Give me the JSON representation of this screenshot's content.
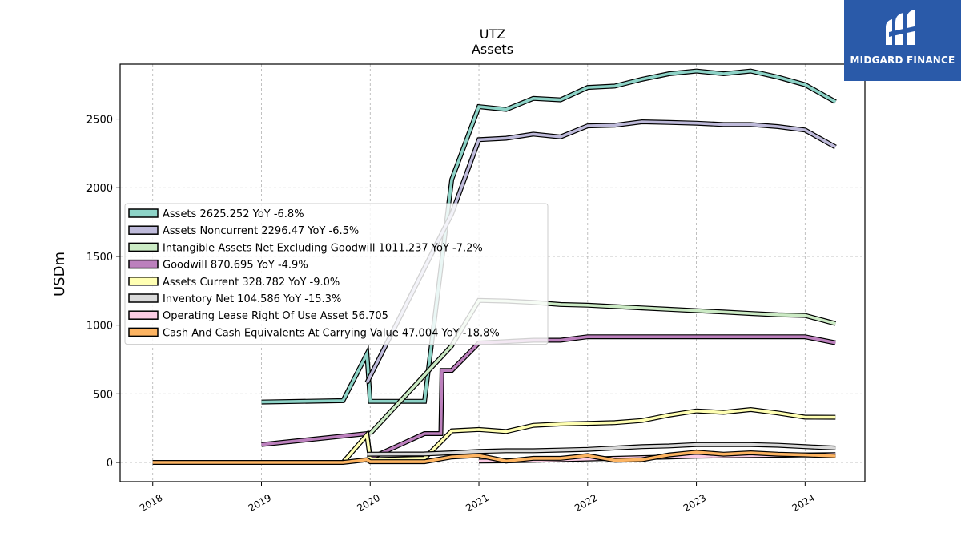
{
  "brand": {
    "name": "MIDGARD FINANCE"
  },
  "chart_data": {
    "type": "line",
    "title": "UTZ",
    "subtitle": "Assets",
    "xlabel": "",
    "ylabel": "USDm",
    "xlim": [
      2017.7,
      2024.55
    ],
    "ylim": [
      -140,
      2900
    ],
    "x_ticks": [
      "2018",
      "2019",
      "2020",
      "2021",
      "2022",
      "2023",
      "2024"
    ],
    "y_ticks": [
      "0",
      "500",
      "1000",
      "1500",
      "2000",
      "2500"
    ],
    "grid": true,
    "legend_position": "center-left",
    "series": [
      {
        "name": "Assets",
        "legend": "Assets  2625.252 YoY -6.8%",
        "color": "#8dd3c7",
        "x": [
          2019.0,
          2019.75,
          2019.97,
          2020.0,
          2020.5,
          2020.75,
          2021.0,
          2021.25,
          2021.5,
          2021.75,
          2022.0,
          2022.25,
          2022.5,
          2022.75,
          2023.0,
          2023.25,
          2023.5,
          2023.75,
          2024.0,
          2024.28
        ],
        "y": [
          440,
          450,
          790,
          445,
          445,
          2060,
          2590,
          2570,
          2650,
          2640,
          2730,
          2740,
          2790,
          2830,
          2850,
          2830,
          2850,
          2805,
          2750,
          2625
        ]
      },
      {
        "name": "Assets Noncurrent",
        "legend": "Assets Noncurrent  2296.47 YoY -6.5%",
        "color": "#bebada",
        "x": [
          2019.97,
          2020.75,
          2021.0,
          2021.25,
          2021.5,
          2021.75,
          2022.0,
          2022.25,
          2022.5,
          2022.75,
          2023.0,
          2023.25,
          2023.5,
          2023.75,
          2024.0,
          2024.28
        ],
        "y": [
          580,
          1810,
          2350,
          2360,
          2390,
          2370,
          2450,
          2455,
          2480,
          2475,
          2470,
          2460,
          2460,
          2445,
          2420,
          2296
        ]
      },
      {
        "name": "Intangible Assets Net Excluding Goodwill",
        "legend": "Intangible Assets Net Excluding Goodwill  1011.237 YoY -7.2%",
        "color": "#ccebc5",
        "x": [
          2020.0,
          2020.75,
          2021.0,
          2021.25,
          2021.5,
          2021.75,
          2022.0,
          2022.25,
          2022.5,
          2022.75,
          2023.0,
          2023.25,
          2023.5,
          2023.75,
          2024.0,
          2024.28
        ],
        "y": [
          210,
          850,
          1180,
          1175,
          1165,
          1150,
          1145,
          1135,
          1125,
          1115,
          1105,
          1095,
          1085,
          1075,
          1070,
          1011
        ]
      },
      {
        "name": "Goodwill",
        "legend": "Goodwill  870.695 YoY -4.9%",
        "color": "#bc80bd",
        "x": [
          2019.0,
          2019.97,
          2020.0,
          2020.5,
          2020.65,
          2020.66,
          2020.75,
          2021.0,
          2021.25,
          2021.5,
          2021.75,
          2022.0,
          2022.25,
          2022.5,
          2022.75,
          2023.0,
          2023.25,
          2023.5,
          2023.75,
          2024.0,
          2024.28
        ],
        "y": [
          130,
          210,
          30,
          210,
          210,
          670,
          670,
          870,
          880,
          890,
          890,
          915,
          915,
          915,
          915,
          915,
          915,
          915,
          915,
          915,
          871
        ]
      },
      {
        "name": "Assets Current",
        "legend": "Assets Current  328.782 YoY -9.0%",
        "color": "#ffffb3",
        "x": [
          2019.75,
          2019.97,
          2020.0,
          2020.5,
          2020.75,
          2021.0,
          2021.25,
          2021.5,
          2021.75,
          2022.0,
          2022.25,
          2022.5,
          2022.75,
          2023.0,
          2023.25,
          2023.5,
          2023.75,
          2024.0,
          2024.28
        ],
        "y": [
          0,
          200,
          20,
          30,
          230,
          240,
          225,
          270,
          280,
          285,
          290,
          305,
          345,
          375,
          365,
          385,
          360,
          330,
          329
        ]
      },
      {
        "name": "Inventory Net",
        "legend": "Inventory Net  104.586 YoY -15.3%",
        "color": "#d9d9d9",
        "x": [
          2019.97,
          2020.5,
          2020.75,
          2021.0,
          2021.25,
          2021.5,
          2021.75,
          2022.0,
          2022.25,
          2022.5,
          2022.75,
          2023.0,
          2023.25,
          2023.5,
          2023.75,
          2024.0,
          2024.28
        ],
        "y": [
          60,
          62,
          70,
          80,
          85,
          85,
          90,
          95,
          105,
          115,
          120,
          130,
          130,
          130,
          125,
          115,
          105
        ]
      },
      {
        "name": "Operating Lease Right Of Use Asset",
        "legend": "Operating Lease Right Of Use Asset  56.705",
        "color": "#fccde5",
        "x": [
          2021.0,
          2021.25,
          2021.5,
          2021.75,
          2022.0,
          2022.25,
          2022.5,
          2022.75,
          2023.0,
          2023.25,
          2023.5,
          2023.75,
          2024.0,
          2024.28
        ],
        "y": [
          10,
          12,
          15,
          20,
          25,
          30,
          35,
          40,
          45,
          48,
          50,
          52,
          55,
          57
        ]
      },
      {
        "name": "Cash And Cash Equivalents At Carrying Value",
        "legend": "Cash And Cash Equivalents At Carrying Value  47.004 YoY -18.8%",
        "color": "#fdb462",
        "x": [
          2018.0,
          2019.0,
          2019.75,
          2019.97,
          2020.0,
          2020.5,
          2020.75,
          2021.0,
          2021.25,
          2021.5,
          2021.75,
          2022.0,
          2022.25,
          2022.5,
          2022.75,
          2023.0,
          2023.25,
          2023.5,
          2023.75,
          2024.0,
          2024.28
        ],
        "y": [
          0,
          0,
          0,
          20,
          5,
          5,
          40,
          50,
          10,
          30,
          30,
          50,
          15,
          20,
          55,
          75,
          60,
          70,
          60,
          55,
          47
        ]
      }
    ]
  }
}
